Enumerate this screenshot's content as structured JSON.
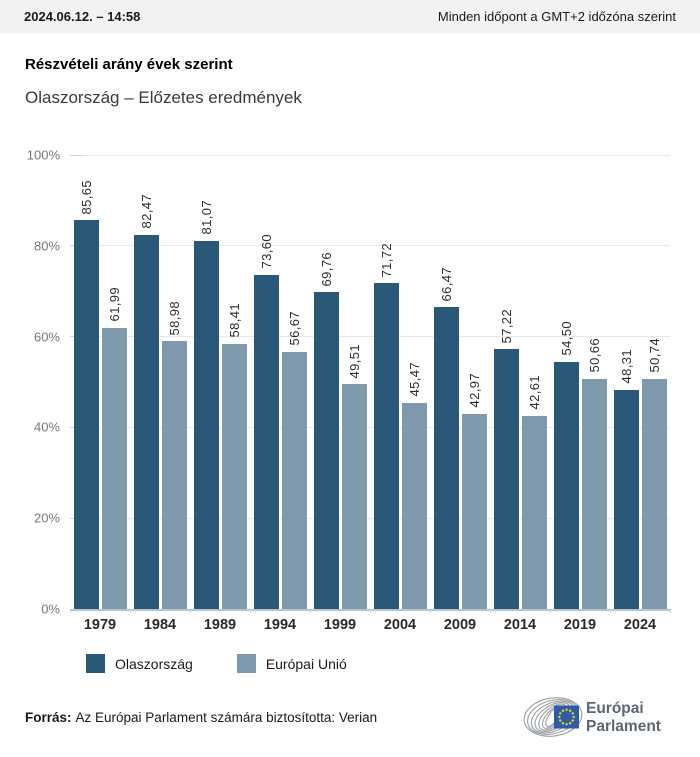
{
  "header": {
    "datetime": "2024.06.12. – 14:58",
    "timezone_note": "Minden időpont a GMT+2 időzóna szerint"
  },
  "title": "Részvételi arány évek szerint",
  "subtitle": "Olaszország – Előzetes eredmények",
  "chart_data": {
    "type": "bar",
    "title": "Részvételi arány évek szerint",
    "categories": [
      "1979",
      "1984",
      "1989",
      "1994",
      "1999",
      "2004",
      "2009",
      "2014",
      "2019",
      "2024"
    ],
    "series": [
      {
        "name": "Olaszország",
        "color": "#2a5878",
        "values": [
          85.65,
          82.47,
          81.07,
          73.6,
          69.76,
          71.72,
          66.47,
          57.22,
          54.5,
          48.31
        ],
        "labels": [
          "85,65",
          "82,47",
          "81,07",
          "73,60",
          "69,76",
          "71,72",
          "66,47",
          "57,22",
          "54,50",
          "48,31"
        ]
      },
      {
        "name": "Európai Unió",
        "color": "#7f9aac",
        "values": [
          61.99,
          58.98,
          58.41,
          56.67,
          49.51,
          45.47,
          42.97,
          42.61,
          50.66,
          50.74
        ],
        "labels": [
          "61,99",
          "58,98",
          "58,41",
          "56,67",
          "49,51",
          "45,47",
          "42,97",
          "42,61",
          "50,66",
          "50,74"
        ]
      }
    ],
    "xlabel": "",
    "ylabel": "",
    "ylim": [
      0,
      100
    ],
    "yticks": [
      "0%",
      "20%",
      "40%",
      "60%",
      "80%",
      "100%"
    ],
    "grid": true,
    "legend_position": "bottom-left",
    "value_label_rotation": -90,
    "decimal_separator": ","
  },
  "footer": {
    "source_label": "Forrás:",
    "source_text": "Az Európai Parlament számára biztosította: Verian",
    "logo": {
      "line1": "Európai",
      "line2": "Parlament",
      "flag_color": "#2e5ca8",
      "star_color": "#f7d117",
      "arc_color": "#9a9fa3",
      "text_color": "#5d6770"
    }
  }
}
